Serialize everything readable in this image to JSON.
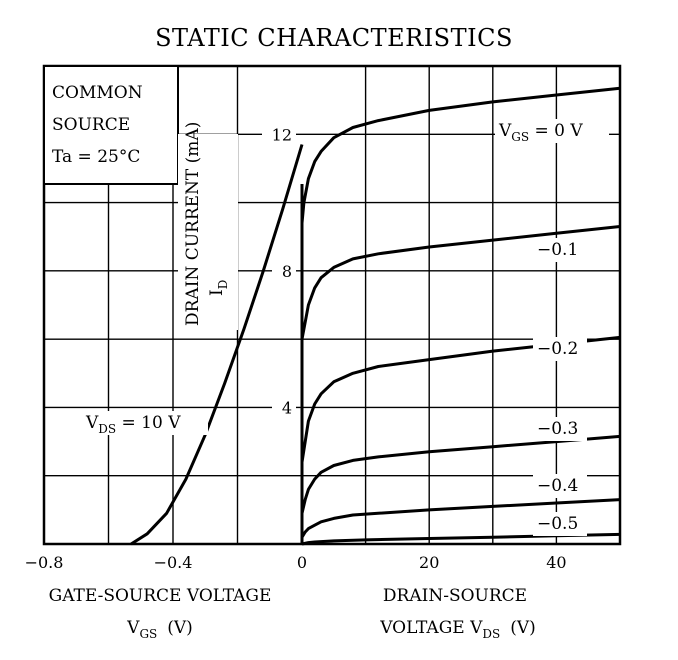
{
  "chart_data": [
    {
      "type": "line",
      "title": "STATIC CHARACTERISTICS",
      "subtitle_lines": [
        "COMMON",
        "SOURCE",
        "Ta = 25°C"
      ],
      "xlabel": "GATE-SOURCE VOLTAGE VGS (V)",
      "xlabel_lines": [
        {
          "text": "GATE-SOURCE VOLTAGE"
        },
        {
          "text": "V",
          "sub": "GS",
          "unit": "(V)"
        }
      ],
      "ylabel": "DRAIN CURRENT ID (mA)",
      "ylabel_lines": [
        {
          "text": "DRAIN CURRENT (mA)"
        },
        {
          "text": "I",
          "sub": "D"
        }
      ],
      "xlim": [
        -0.8,
        0
      ],
      "ylim": [
        0,
        14
      ],
      "grid": true,
      "x_ticks": [
        -0.8,
        -0.4,
        0
      ],
      "x_tick_labels": [
        "−0.8",
        "−0.4",
        "0"
      ],
      "y_ticks": [
        4,
        8,
        12
      ],
      "y_tick_labels": [
        "4",
        "8",
        "12"
      ],
      "series": [
        {
          "name": "VDS = 10 V",
          "label": {
            "text": "V",
            "sub": "DS",
            "rest": " = 10 V"
          },
          "x": [
            -0.53,
            -0.48,
            -0.42,
            -0.36,
            -0.3,
            -0.24,
            -0.18,
            -0.12,
            -0.06,
            0.0
          ],
          "y": [
            0.0,
            0.3,
            0.9,
            1.9,
            3.2,
            4.7,
            6.3,
            8.0,
            9.8,
            11.7
          ]
        }
      ]
    },
    {
      "type": "line",
      "xlabel": "DRAIN-SOURCE VOLTAGE VDS (V)",
      "xlabel_lines": [
        {
          "text": "DRAIN-SOURCE"
        },
        {
          "text": "VOLTAGE  V",
          "sub": "DS",
          "unit": "(V)"
        }
      ],
      "xlim": [
        0,
        50
      ],
      "ylim": [
        0,
        14
      ],
      "grid": true,
      "x_ticks": [
        20,
        40
      ],
      "x_tick_labels": [
        "20",
        "40"
      ],
      "series": [
        {
          "name": "VGS = 0 V",
          "label": {
            "text": "V",
            "sub": "GS",
            "rest": " = 0 V"
          },
          "x": [
            0,
            0.3,
            1,
            2,
            3,
            5,
            8,
            12,
            20,
            30,
            40,
            50
          ],
          "y": [
            9.4,
            10.0,
            10.7,
            11.2,
            11.5,
            11.9,
            12.2,
            12.4,
            12.7,
            12.95,
            13.15,
            13.35
          ]
        },
        {
          "name": "−0.1",
          "label": {
            "text": "−0.1"
          },
          "x": [
            0,
            0.5,
            1,
            2,
            3,
            5,
            8,
            12,
            20,
            30,
            40,
            50
          ],
          "y": [
            6.0,
            6.5,
            7.0,
            7.5,
            7.8,
            8.1,
            8.35,
            8.5,
            8.7,
            8.9,
            9.1,
            9.3
          ]
        },
        {
          "name": "−0.2",
          "label": {
            "text": "−0.2"
          },
          "x": [
            0,
            0.5,
            1,
            2,
            3,
            5,
            8,
            12,
            20,
            30,
            40,
            50
          ],
          "y": [
            2.4,
            3.0,
            3.6,
            4.1,
            4.4,
            4.75,
            5.0,
            5.2,
            5.4,
            5.65,
            5.85,
            6.05
          ]
        },
        {
          "name": "−0.3",
          "label": {
            "text": "−0.3"
          },
          "x": [
            0,
            0.5,
            1,
            2,
            3,
            5,
            8,
            12,
            20,
            30,
            40,
            50
          ],
          "y": [
            0.9,
            1.3,
            1.6,
            1.9,
            2.1,
            2.3,
            2.45,
            2.55,
            2.7,
            2.85,
            3.0,
            3.15
          ]
        },
        {
          "name": "−0.4",
          "label": {
            "text": "−0.4"
          },
          "x": [
            0,
            0.5,
            1,
            2,
            3,
            5,
            8,
            12,
            20,
            30,
            40,
            50
          ],
          "y": [
            0.2,
            0.35,
            0.45,
            0.55,
            0.65,
            0.75,
            0.85,
            0.9,
            1.0,
            1.1,
            1.2,
            1.3
          ]
        },
        {
          "name": "−0.5",
          "label": {
            "text": "−0.5"
          },
          "x": [
            0,
            1,
            2,
            5,
            10,
            20,
            30,
            40,
            50
          ],
          "y": [
            0.0,
            0.04,
            0.06,
            0.09,
            0.12,
            0.16,
            0.2,
            0.24,
            0.28
          ]
        }
      ]
    }
  ]
}
